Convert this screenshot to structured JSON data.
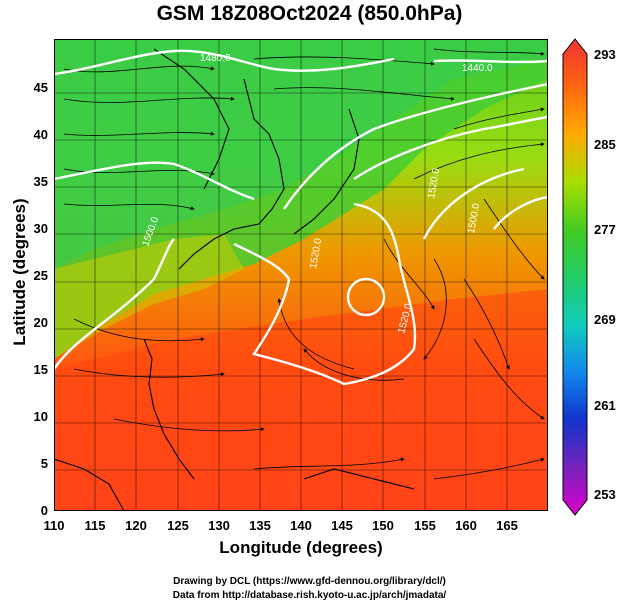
{
  "title": "GSM 18Z08Oct2024 (850.0hPa)",
  "x_axis": {
    "label": "Longitude (degrees)",
    "ticks": [
      "110",
      "115",
      "120",
      "125",
      "130",
      "135",
      "140",
      "145",
      "150",
      "155",
      "160",
      "165"
    ],
    "range": [
      110,
      170
    ]
  },
  "y_axis": {
    "label": "Latitude  (degrees)",
    "ticks": [
      "0",
      "5",
      "10",
      "15",
      "20",
      "25",
      "30",
      "35",
      "40",
      "45"
    ],
    "range": [
      0,
      50
    ]
  },
  "colorbar": {
    "labels": [
      "293",
      "285",
      "277",
      "269",
      "261",
      "253"
    ],
    "min": 253,
    "max": 293,
    "colors": [
      "#cc00cc",
      "#5533bb",
      "#1144dd",
      "#00aaee",
      "#22ccaa",
      "#33cc33",
      "#77dd11",
      "#cccc00",
      "#ff9900",
      "#ff5511",
      "#ee3333"
    ]
  },
  "contour_labels": [
    "1480.0",
    "1440.0",
    "1500.0",
    "1520.0",
    "1520.0",
    "1500.0",
    "1520.0"
  ],
  "credits": {
    "line1": "Drawing by DCL (https://www.gfd-dennou.org/library/dcl/)",
    "line2": "Data from http://database.rish.kyoto-u.ac.jp/arch/jmadata/"
  }
}
